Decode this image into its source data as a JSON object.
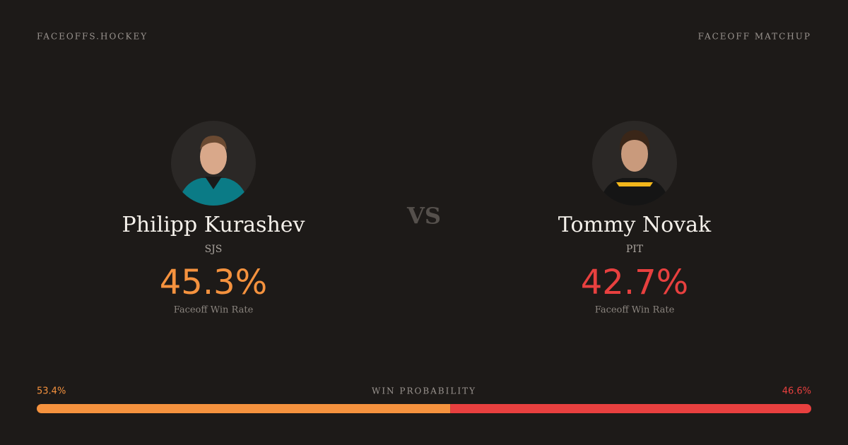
{
  "header": {
    "site": "FACEOFFS.HOCKEY",
    "label": "FACEOFF MATCHUP"
  },
  "players": [
    {
      "name": "Philipp Kurashev",
      "team": "SJS",
      "rate": "45.3%",
      "rate_label": "Faceoff Win Rate"
    },
    {
      "name": "Tommy Novak",
      "team": "PIT",
      "rate": "42.7%",
      "rate_label": "Faceoff Win Rate"
    }
  ],
  "vs": "VS",
  "win_probability": {
    "title": "WIN PROBABILITY",
    "sides": [
      {
        "value": 53.4,
        "label": "53.4%",
        "color": "#f5923e"
      },
      {
        "value": 46.6,
        "label": "46.6%",
        "color": "#e8403f"
      }
    ]
  }
}
